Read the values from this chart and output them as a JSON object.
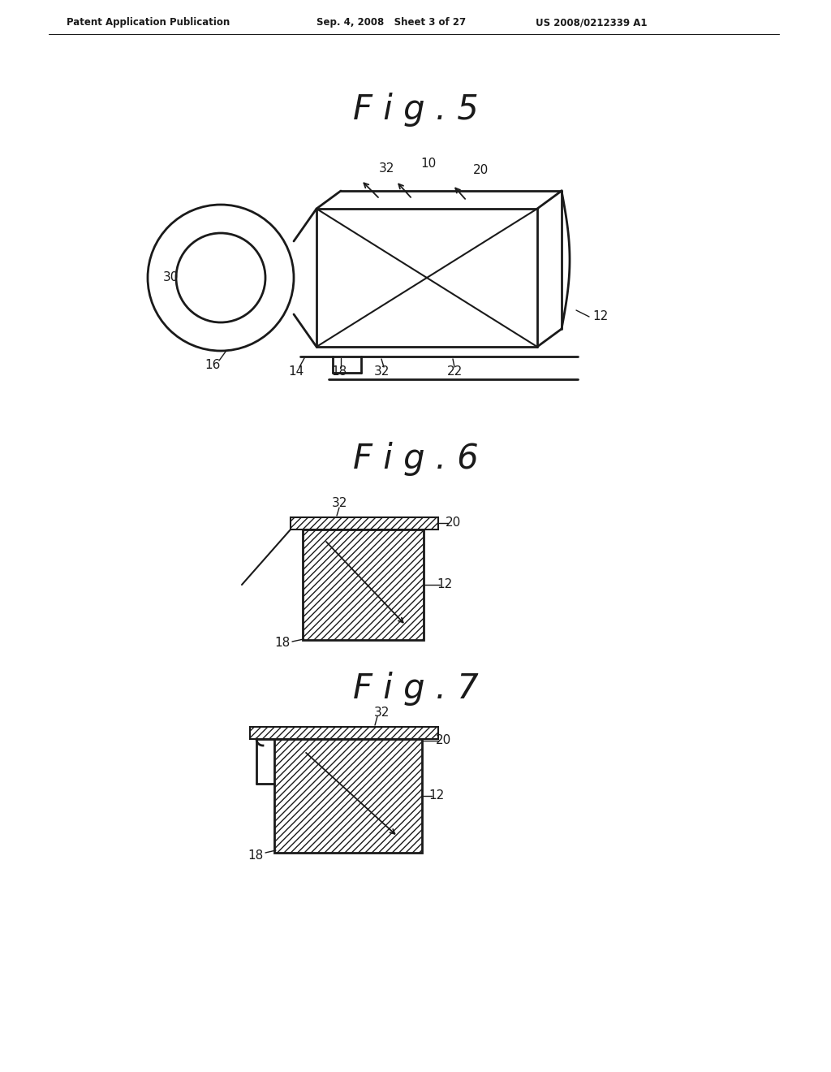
{
  "bg_color": "#ffffff",
  "line_color": "#1a1a1a",
  "header_left": "Patent Application Publication",
  "header_mid": "Sep. 4, 2008   Sheet 3 of 27",
  "header_right": "US 2008/0212339 A1",
  "fig5_title": "F i g . 5",
  "fig6_title": "F i g . 6",
  "fig7_title": "F i g . 7"
}
